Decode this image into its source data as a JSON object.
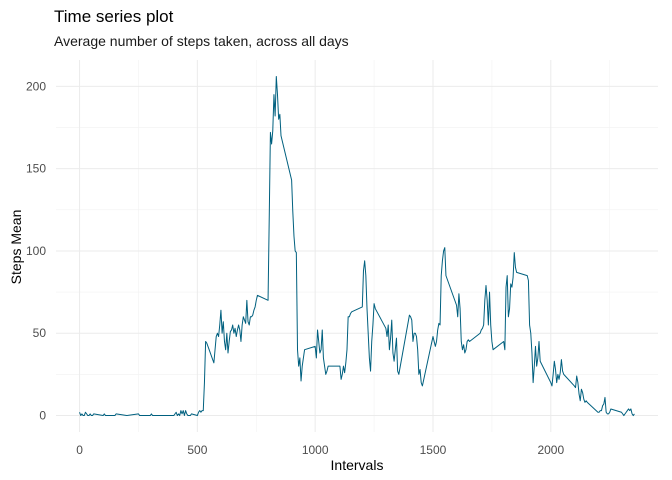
{
  "chart_data": {
    "type": "line",
    "title": "Time series plot",
    "subtitle": "Average number of steps taken, across all days",
    "xlabel": "Intervals",
    "ylabel": "Steps Mean",
    "xlim": [
      -100,
      2455
    ],
    "ylim": [
      -10,
      216
    ],
    "x_ticks": [
      0,
      500,
      1000,
      1500,
      2000
    ],
    "y_ticks": [
      0,
      50,
      100,
      150,
      200
    ],
    "grid": true,
    "line_color": "#00607F",
    "series": [
      {
        "points": [
          [
            0,
            2
          ],
          [
            5,
            0
          ],
          [
            10,
            1
          ],
          [
            15,
            0
          ],
          [
            20,
            0
          ],
          [
            25,
            2
          ],
          [
            30,
            1
          ],
          [
            35,
            0
          ],
          [
            40,
            0
          ],
          [
            45,
            1
          ],
          [
            50,
            0
          ],
          [
            55,
            0
          ],
          [
            60,
            1
          ],
          [
            100,
            0
          ],
          [
            105,
            1
          ],
          [
            110,
            0
          ],
          [
            150,
            0
          ],
          [
            155,
            1
          ],
          [
            200,
            0
          ],
          [
            250,
            1
          ],
          [
            255,
            0
          ],
          [
            300,
            0
          ],
          [
            305,
            1
          ],
          [
            310,
            0
          ],
          [
            350,
            0
          ],
          [
            400,
            0
          ],
          [
            405,
            1
          ],
          [
            410,
            2
          ],
          [
            415,
            0
          ],
          [
            420,
            1
          ],
          [
            425,
            0
          ],
          [
            430,
            3
          ],
          [
            435,
            1
          ],
          [
            440,
            3
          ],
          [
            445,
            0
          ],
          [
            450,
            3
          ],
          [
            455,
            1
          ],
          [
            460,
            0
          ],
          [
            465,
            0
          ],
          [
            470,
            0
          ],
          [
            475,
            1
          ],
          [
            500,
            0
          ],
          [
            505,
            2
          ],
          [
            510,
            3
          ],
          [
            515,
            2
          ],
          [
            520,
            3
          ],
          [
            525,
            3
          ],
          [
            530,
            20
          ],
          [
            535,
            45
          ],
          [
            540,
            44
          ],
          [
            550,
            40
          ],
          [
            560,
            36
          ],
          [
            570,
            32
          ],
          [
            580,
            48
          ],
          [
            585,
            50
          ],
          [
            590,
            48
          ],
          [
            595,
            55
          ],
          [
            600,
            64
          ],
          [
            605,
            50
          ],
          [
            610,
            57
          ],
          [
            615,
            45
          ],
          [
            620,
            40
          ],
          [
            625,
            50
          ],
          [
            630,
            38
          ],
          [
            635,
            45
          ],
          [
            640,
            51
          ],
          [
            645,
            52
          ],
          [
            650,
            55
          ],
          [
            655,
            50
          ],
          [
            660,
            53
          ],
          [
            665,
            48
          ],
          [
            670,
            52
          ],
          [
            675,
            55
          ],
          [
            680,
            52
          ],
          [
            685,
            45
          ],
          [
            690,
            55
          ],
          [
            695,
            60
          ],
          [
            700,
            58
          ],
          [
            705,
            56
          ],
          [
            710,
            70
          ],
          [
            715,
            57
          ],
          [
            720,
            55
          ],
          [
            725,
            60
          ],
          [
            730,
            60
          ],
          [
            735,
            61
          ],
          [
            740,
            64
          ],
          [
            745,
            66
          ],
          [
            750,
            70
          ],
          [
            755,
            73
          ],
          [
            800,
            70
          ],
          [
            805,
            120
          ],
          [
            810,
            172
          ],
          [
            815,
            165
          ],
          [
            820,
            173
          ],
          [
            825,
            195
          ],
          [
            830,
            182
          ],
          [
            835,
            206
          ],
          [
            840,
            195
          ],
          [
            845,
            180
          ],
          [
            850,
            183
          ],
          [
            855,
            170
          ],
          [
            900,
            143
          ],
          [
            905,
            124
          ],
          [
            910,
            109
          ],
          [
            915,
            100
          ],
          [
            920,
            99
          ],
          [
            925,
            40
          ],
          [
            930,
            30
          ],
          [
            935,
            35
          ],
          [
            940,
            21
          ],
          [
            945,
            30
          ],
          [
            950,
            35
          ],
          [
            955,
            40
          ],
          [
            1000,
            42
          ],
          [
            1005,
            35
          ],
          [
            1010,
            52
          ],
          [
            1015,
            45
          ],
          [
            1020,
            38
          ],
          [
            1025,
            40
          ],
          [
            1030,
            52
          ],
          [
            1035,
            35
          ],
          [
            1040,
            30
          ],
          [
            1045,
            25
          ],
          [
            1050,
            27
          ],
          [
            1055,
            30
          ],
          [
            1100,
            30
          ],
          [
            1105,
            30
          ],
          [
            1110,
            22
          ],
          [
            1115,
            25
          ],
          [
            1120,
            30
          ],
          [
            1125,
            26
          ],
          [
            1130,
            32
          ],
          [
            1135,
            40
          ],
          [
            1140,
            60
          ],
          [
            1145,
            60
          ],
          [
            1150,
            62
          ],
          [
            1155,
            63
          ],
          [
            1200,
            66
          ],
          [
            1205,
            88
          ],
          [
            1210,
            94
          ],
          [
            1215,
            85
          ],
          [
            1220,
            65
          ],
          [
            1225,
            50
          ],
          [
            1230,
            35
          ],
          [
            1235,
            27
          ],
          [
            1240,
            45
          ],
          [
            1245,
            55
          ],
          [
            1250,
            68
          ],
          [
            1255,
            65
          ],
          [
            1300,
            53
          ],
          [
            1305,
            48
          ],
          [
            1310,
            55
          ],
          [
            1315,
            40
          ],
          [
            1320,
            47
          ],
          [
            1325,
            58
          ],
          [
            1330,
            38
          ],
          [
            1335,
            33
          ],
          [
            1340,
            40
          ],
          [
            1345,
            47
          ],
          [
            1350,
            27
          ],
          [
            1355,
            25
          ],
          [
            1400,
            61
          ],
          [
            1405,
            60
          ],
          [
            1410,
            58
          ],
          [
            1415,
            45
          ],
          [
            1420,
            50
          ],
          [
            1425,
            50
          ],
          [
            1430,
            48
          ],
          [
            1435,
            40
          ],
          [
            1440,
            25
          ],
          [
            1445,
            28
          ],
          [
            1450,
            20
          ],
          [
            1455,
            18
          ],
          [
            1500,
            48
          ],
          [
            1505,
            45
          ],
          [
            1510,
            42
          ],
          [
            1515,
            45
          ],
          [
            1520,
            52
          ],
          [
            1525,
            56
          ],
          [
            1530,
            55
          ],
          [
            1535,
            85
          ],
          [
            1540,
            94
          ],
          [
            1545,
            100
          ],
          [
            1550,
            102
          ],
          [
            1555,
            85
          ],
          [
            1600,
            67
          ],
          [
            1605,
            60
          ],
          [
            1610,
            74
          ],
          [
            1615,
            65
          ],
          [
            1620,
            45
          ],
          [
            1625,
            40
          ],
          [
            1630,
            43
          ],
          [
            1635,
            38
          ],
          [
            1640,
            40
          ],
          [
            1645,
            45
          ],
          [
            1650,
            46
          ],
          [
            1655,
            45
          ],
          [
            1700,
            50
          ],
          [
            1705,
            52
          ],
          [
            1710,
            53
          ],
          [
            1715,
            55
          ],
          [
            1720,
            70
          ],
          [
            1725,
            79
          ],
          [
            1730,
            70
          ],
          [
            1735,
            55
          ],
          [
            1740,
            75
          ],
          [
            1745,
            55
          ],
          [
            1750,
            45
          ],
          [
            1755,
            40
          ],
          [
            1800,
            45
          ],
          [
            1805,
            40
          ],
          [
            1810,
            78
          ],
          [
            1815,
            85
          ],
          [
            1820,
            60
          ],
          [
            1825,
            65
          ],
          [
            1830,
            80
          ],
          [
            1835,
            78
          ],
          [
            1840,
            84
          ],
          [
            1845,
            99
          ],
          [
            1850,
            90
          ],
          [
            1855,
            87
          ],
          [
            1900,
            85
          ],
          [
            1905,
            82
          ],
          [
            1910,
            55
          ],
          [
            1915,
            50
          ],
          [
            1920,
            38
          ],
          [
            1925,
            20
          ],
          [
            1930,
            30
          ],
          [
            1935,
            42
          ],
          [
            1940,
            30
          ],
          [
            1945,
            35
          ],
          [
            1950,
            45
          ],
          [
            1955,
            33
          ],
          [
            2000,
            20
          ],
          [
            2005,
            18
          ],
          [
            2010,
            25
          ],
          [
            2015,
            33
          ],
          [
            2020,
            28
          ],
          [
            2025,
            20
          ],
          [
            2030,
            25
          ],
          [
            2035,
            22
          ],
          [
            2040,
            26
          ],
          [
            2045,
            34
          ],
          [
            2050,
            27
          ],
          [
            2055,
            25
          ],
          [
            2100,
            18
          ],
          [
            2105,
            17
          ],
          [
            2110,
            24
          ],
          [
            2115,
            20
          ],
          [
            2120,
            13
          ],
          [
            2125,
            9
          ],
          [
            2130,
            16
          ],
          [
            2135,
            14
          ],
          [
            2140,
            10
          ],
          [
            2145,
            8
          ],
          [
            2150,
            9
          ],
          [
            2155,
            8
          ],
          [
            2200,
            2
          ],
          [
            2205,
            2
          ],
          [
            2210,
            3
          ],
          [
            2215,
            3
          ],
          [
            2220,
            6
          ],
          [
            2225,
            7
          ],
          [
            2230,
            11
          ],
          [
            2235,
            2
          ],
          [
            2240,
            1
          ],
          [
            2245,
            1
          ],
          [
            2250,
            2
          ],
          [
            2255,
            4
          ],
          [
            2300,
            2
          ],
          [
            2305,
            1
          ],
          [
            2310,
            0
          ],
          [
            2315,
            1
          ],
          [
            2320,
            2
          ],
          [
            2325,
            3
          ],
          [
            2330,
            4
          ],
          [
            2335,
            3
          ],
          [
            2340,
            4
          ],
          [
            2345,
            1
          ],
          [
            2350,
            0
          ],
          [
            2355,
            1
          ]
        ]
      }
    ]
  }
}
